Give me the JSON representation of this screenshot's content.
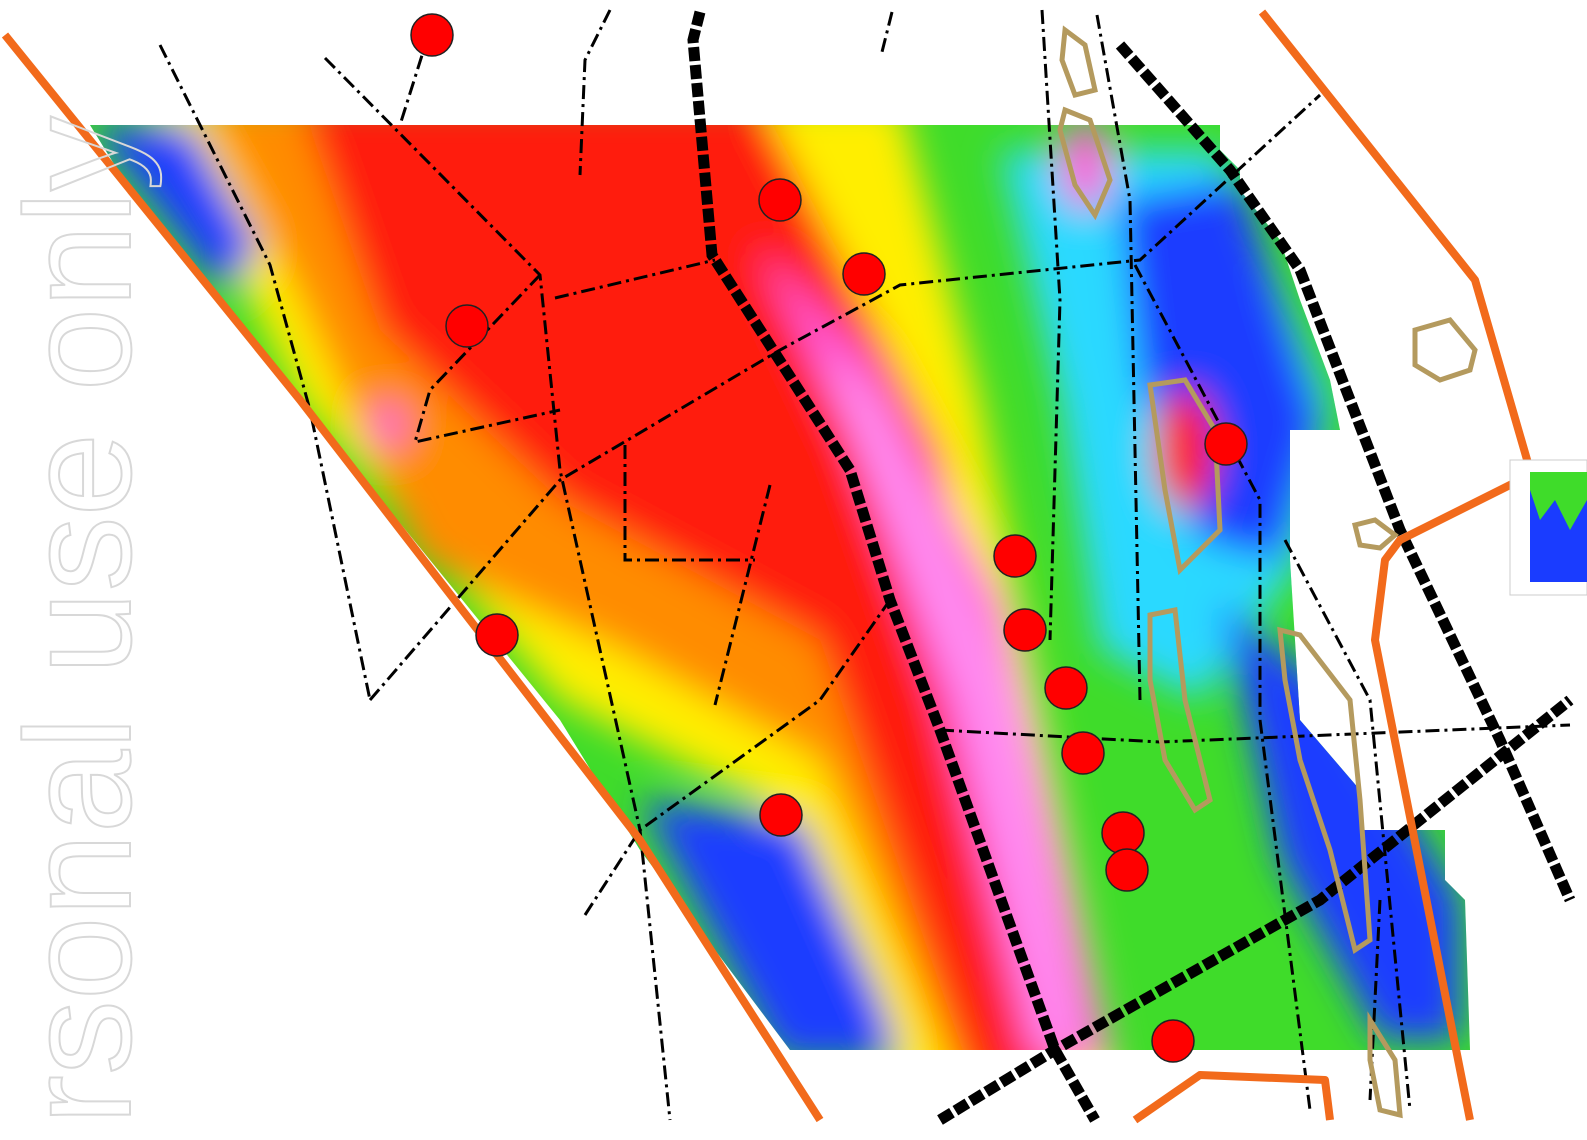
{
  "watermark": "rsonal use only"
}
